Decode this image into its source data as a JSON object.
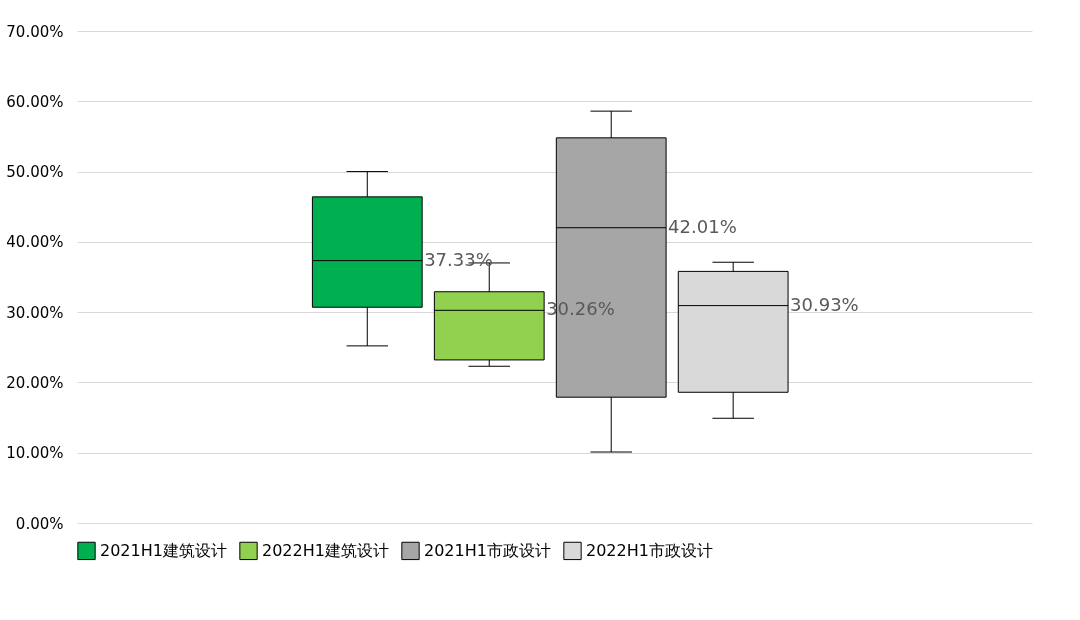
{
  "chart_data": {
    "type": "box",
    "categories": [
      null
    ],
    "series": [
      {
        "name": "2021H1建筑设计",
        "color": "#00b050",
        "boxes": [
          {
            "low": 25.2,
            "q1": 30.7,
            "median": 37.33,
            "q3": 46.4,
            "high": 50.0
          }
        ]
      },
      {
        "name": "2022H1建筑设计",
        "color": "#92d050",
        "boxes": [
          {
            "low": 22.3,
            "q1": 23.2,
            "median": 30.26,
            "q3": 32.9,
            "high": 37.0
          }
        ]
      },
      {
        "name": "2021H1市政设计",
        "color": "#a6a6a6",
        "boxes": [
          {
            "low": 10.1,
            "q1": 17.9,
            "median": 42.01,
            "q3": 54.8,
            "high": 58.6
          }
        ]
      },
      {
        "name": "2022H1市政设计",
        "color": "#d9d9d9",
        "boxes": [
          {
            "low": 14.9,
            "q1": 18.6,
            "median": 30.93,
            "q3": 35.8,
            "high": 37.1
          }
        ]
      }
    ],
    "ylim": [
      0,
      70
    ],
    "yticks": [
      {
        "value": 0,
        "label": "0.00%"
      },
      {
        "value": 10,
        "label": "10.00%"
      },
      {
        "value": 20,
        "label": "20.00%"
      },
      {
        "value": 30,
        "label": "30.00%"
      },
      {
        "value": 40,
        "label": "40.00%"
      },
      {
        "value": 50,
        "label": "50.00%"
      },
      {
        "value": 60,
        "label": "60.00%"
      },
      {
        "value": 70,
        "label": "70.00%"
      }
    ],
    "annotations": [
      "37.33%",
      "30.26%",
      "42.01%",
      "30.93%"
    ],
    "grid": "y",
    "legend": "bottom",
    "tick_labels": "y"
  }
}
